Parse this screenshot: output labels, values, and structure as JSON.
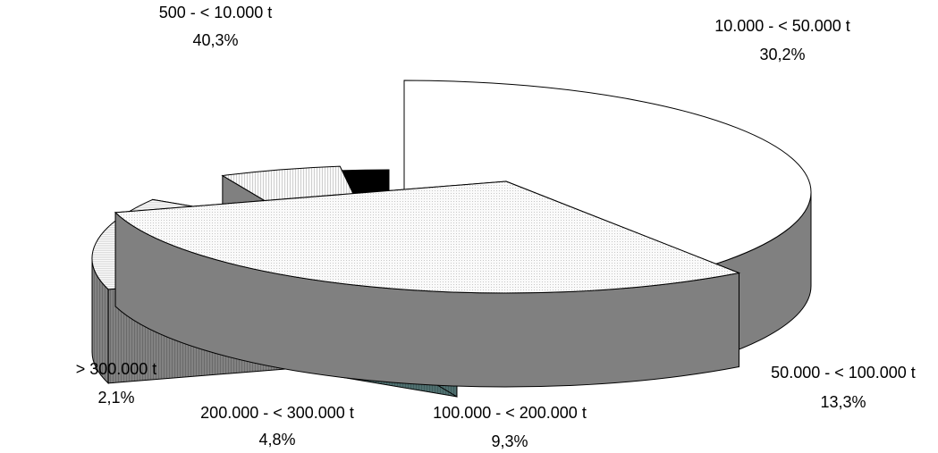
{
  "chart_data": {
    "type": "pie",
    "style": "3d-exploded",
    "slices": [
      {
        "label": "500 - < 10.000 t",
        "value": 40.3,
        "display": "40,3%",
        "color": "#ffffff"
      },
      {
        "label": "10.000 - < 50.000 t",
        "value": 30.2,
        "display": "30,2%",
        "color": "#f2f2f2"
      },
      {
        "label": "50.000 - < 100.000 t",
        "value": 13.3,
        "display": "13,3%",
        "color": "#f2f2f2"
      },
      {
        "label": "100.000 - < 200.000 t",
        "value": 9.3,
        "display": "9,3%",
        "color": "#a3e0e0"
      },
      {
        "label": "200.000 - < 300.000 t",
        "value": 4.8,
        "display": "4,8%",
        "color": "#f2f2f2"
      },
      {
        "label": "> 300.000 t",
        "value": 2.1,
        "display": "2,1%",
        "color": "#000000"
      }
    ],
    "side_colors": [
      "#808080",
      "#808080",
      "#808080",
      "#4d6e6e",
      "#808080",
      "#000000"
    ],
    "legend": "none"
  }
}
